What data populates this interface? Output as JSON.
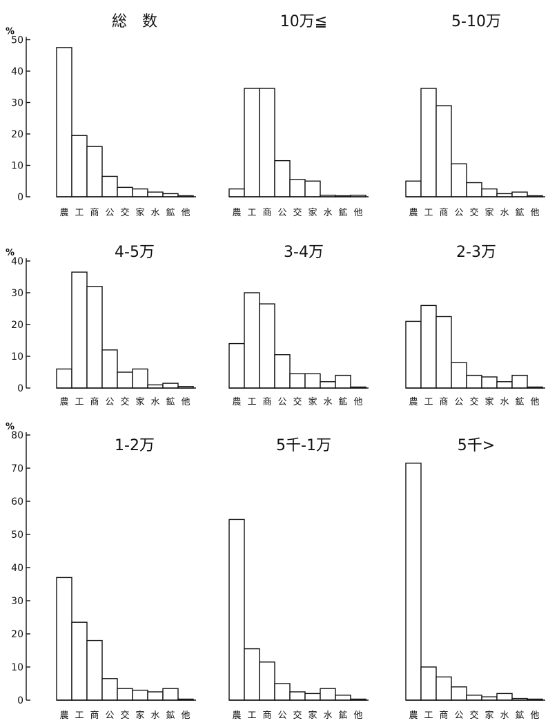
{
  "chart_data": [
    {
      "type": "bar",
      "title": "総　数",
      "categories": [
        "農",
        "工",
        "商",
        "公",
        "交",
        "家",
        "水",
        "鉱",
        "他"
      ],
      "values": [
        47.5,
        19.5,
        16,
        6.5,
        3,
        2.5,
        1.5,
        1,
        0.3
      ],
      "ylim": [
        0,
        50
      ],
      "yticks": [
        0,
        10,
        20,
        30,
        40,
        50
      ],
      "ylabel": "%"
    },
    {
      "type": "bar",
      "title": "10万≦",
      "categories": [
        "農",
        "工",
        "商",
        "公",
        "交",
        "家",
        "水",
        "鉱",
        "他"
      ],
      "values": [
        2.5,
        34.5,
        34.5,
        11.5,
        5.5,
        5,
        0.5,
        0.3,
        0.5
      ],
      "ylim": [
        0,
        50
      ]
    },
    {
      "type": "bar",
      "title": "5-10万",
      "categories": [
        "農",
        "工",
        "商",
        "公",
        "交",
        "家",
        "水",
        "鉱",
        "他"
      ],
      "values": [
        5,
        34.5,
        29,
        10.5,
        4.5,
        2.5,
        1,
        1.5,
        0.3
      ],
      "ylim": [
        0,
        50
      ]
    },
    {
      "type": "bar",
      "title": "4-5万",
      "categories": [
        "農",
        "工",
        "商",
        "公",
        "交",
        "家",
        "水",
        "鉱",
        "他"
      ],
      "values": [
        6,
        36.5,
        32,
        12,
        5,
        6,
        1,
        1.5,
        0.5
      ],
      "ylim": [
        0,
        40
      ],
      "yticks": [
        0,
        10,
        20,
        30,
        40
      ],
      "ylabel": "%"
    },
    {
      "type": "bar",
      "title": "3-4万",
      "categories": [
        "農",
        "工",
        "商",
        "公",
        "交",
        "家",
        "水",
        "鉱",
        "他"
      ],
      "values": [
        14,
        30,
        26.5,
        10.5,
        4.5,
        4.5,
        2,
        4,
        0.3
      ],
      "ylim": [
        0,
        40
      ]
    },
    {
      "type": "bar",
      "title": "2-3万",
      "categories": [
        "農",
        "工",
        "商",
        "公",
        "交",
        "家",
        "水",
        "鉱",
        "他"
      ],
      "values": [
        21,
        26,
        22.5,
        8,
        4,
        3.5,
        2,
        4,
        0.3
      ],
      "ylim": [
        0,
        40
      ]
    },
    {
      "type": "bar",
      "title": "1-2万",
      "categories": [
        "農",
        "工",
        "商",
        "公",
        "交",
        "家",
        "水",
        "鉱",
        "他"
      ],
      "values": [
        37,
        23.5,
        18,
        6.5,
        3.5,
        3,
        2.5,
        3.5,
        0.3
      ],
      "ylim": [
        0,
        80
      ],
      "yticks": [
        0,
        10,
        20,
        30,
        40,
        50,
        60,
        70,
        80
      ],
      "ylabel": "%"
    },
    {
      "type": "bar",
      "title": "5千-1万",
      "categories": [
        "農",
        "工",
        "商",
        "公",
        "交",
        "家",
        "水",
        "鉱",
        "他"
      ],
      "values": [
        54.5,
        15.5,
        11.5,
        5,
        2.5,
        2,
        3.5,
        1.5,
        0.3
      ],
      "ylim": [
        0,
        80
      ]
    },
    {
      "type": "bar",
      "title": "5千>",
      "categories": [
        "農",
        "工",
        "商",
        "公",
        "交",
        "家",
        "水",
        "鉱",
        "他"
      ],
      "values": [
        71.5,
        10,
        7,
        4,
        1.5,
        1,
        2,
        0.5,
        0.3
      ],
      "ylim": [
        0,
        80
      ]
    }
  ]
}
